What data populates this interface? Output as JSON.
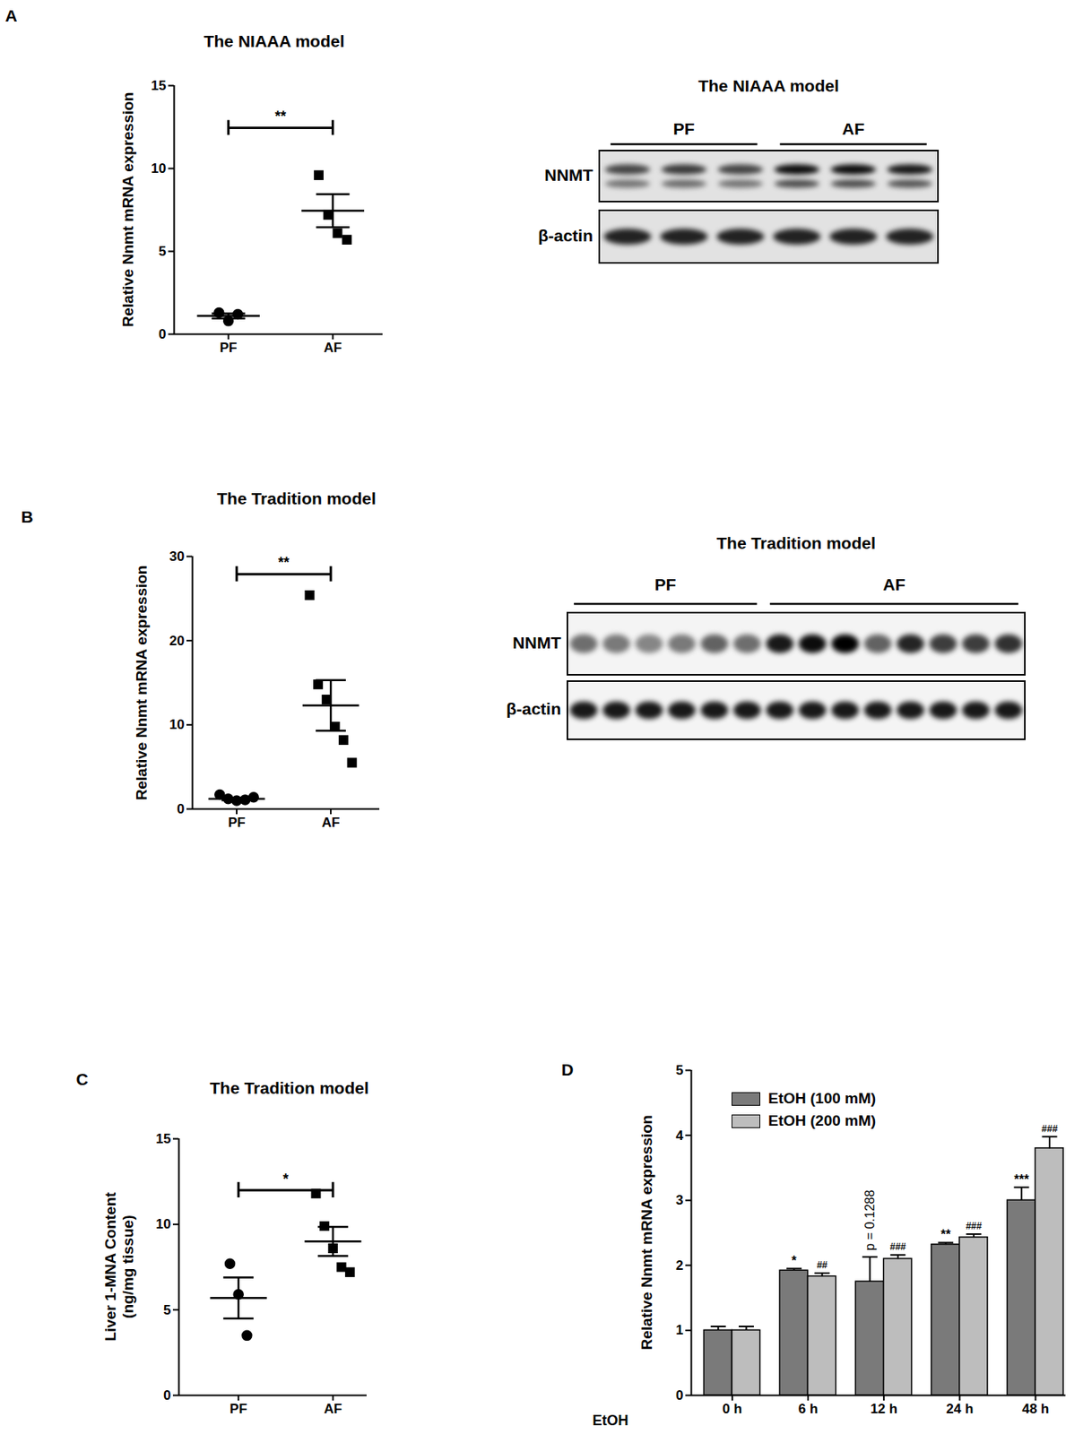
{
  "chart_data": [
    {
      "panel": "A",
      "type": "scatter",
      "title": "The NIAAA model",
      "y_label": "Relative Nnmt mRNA expression",
      "categories": [
        "PF",
        "AF"
      ],
      "points": [
        [
          1.3,
          0.8,
          1.2
        ],
        [
          9.6,
          7.2,
          6.1,
          5.7
        ]
      ],
      "mean": [
        1.1,
        7.45
      ],
      "sem": [
        0.15,
        1.0
      ],
      "marker": [
        "circle",
        "square"
      ],
      "color": "#000000",
      "ylim": [
        0,
        15
      ],
      "yticks": [
        0,
        5,
        10,
        15
      ],
      "significance": "**"
    },
    {
      "panel": "B",
      "type": "scatter",
      "title": "The Tradition model",
      "y_label": "Relative Nnmt mRNA expression",
      "categories": [
        "PF",
        "AF"
      ],
      "points": [
        [
          1.7,
          1.2,
          1.0,
          1.1,
          1.4
        ],
        [
          25.4,
          14.8,
          13.0,
          9.8,
          8.2,
          5.5
        ]
      ],
      "mean": [
        1.2,
        12.3
      ],
      "sem": [
        0.15,
        3.0
      ],
      "marker": [
        "circle",
        "square"
      ],
      "color": "#000000",
      "ylim": [
        0,
        30
      ],
      "yticks": [
        0,
        10,
        20,
        30
      ],
      "significance": "**"
    },
    {
      "panel": "C",
      "type": "scatter",
      "title": "The Tradition model",
      "y_label": [
        "Liver 1-MNA Content",
        "(ng/mg tissue)"
      ],
      "categories": [
        "PF",
        "AF"
      ],
      "points": [
        [
          7.7,
          5.9,
          3.5
        ],
        [
          11.8,
          9.9,
          8.6,
          7.5,
          7.2
        ]
      ],
      "mean": [
        5.7,
        9.0
      ],
      "sem": [
        1.2,
        0.85
      ],
      "marker": [
        "circle",
        "square"
      ],
      "color": "#000000",
      "ylim": [
        0,
        15
      ],
      "yticks": [
        0,
        5,
        10,
        15
      ],
      "significance": "*"
    },
    {
      "panel": "D",
      "type": "bar",
      "y_label": "Relative Nnmt mRNA expression",
      "x_label": "EtOH",
      "categories": [
        "0 h",
        "6 h",
        "12 h",
        "24 h",
        "48 h"
      ],
      "series": [
        {
          "name": "EtOH (100 mM)",
          "color": "#7a7a7a",
          "values": [
            1.0,
            1.92,
            1.75,
            2.32,
            3.0
          ],
          "errors": [
            0.06,
            0.03,
            0.38,
            0.03,
            0.2
          ],
          "annotations": [
            null,
            "*",
            "p = 0.1288",
            "**",
            "***"
          ]
        },
        {
          "name": "EtOH (200 mM)",
          "color": "#bdbdbd",
          "values": [
            1.0,
            1.83,
            2.1,
            2.43,
            3.8
          ],
          "errors": [
            0.06,
            0.05,
            0.06,
            0.05,
            0.18
          ],
          "annotations": [
            null,
            "##",
            "###",
            "###",
            "###"
          ]
        }
      ],
      "ylim": [
        0,
        5
      ],
      "yticks": [
        0,
        1,
        2,
        3,
        4,
        5
      ],
      "legend": "top-left"
    }
  ],
  "blots": [
    {
      "title": "The NIAAA model",
      "groups": [
        {
          "label": "PF",
          "lanes": 3
        },
        {
          "label": "AF",
          "lanes": 3
        }
      ],
      "rows": [
        {
          "label": "NNMT",
          "intensity": [
            0.7,
            0.75,
            0.7,
            0.95,
            0.95,
            0.9
          ]
        },
        {
          "label": "β-actin",
          "intensity": [
            0.85,
            0.85,
            0.85,
            0.85,
            0.85,
            0.85
          ]
        }
      ]
    },
    {
      "title": "The Tradition model",
      "groups": [
        {
          "label": "PF",
          "lanes": 6
        },
        {
          "label": "AF",
          "lanes": 8
        }
      ],
      "rows": [
        {
          "label": "NNMT",
          "intensity": [
            0.55,
            0.5,
            0.45,
            0.5,
            0.6,
            0.55,
            0.9,
            0.95,
            1.0,
            0.6,
            0.85,
            0.75,
            0.75,
            0.8
          ]
        },
        {
          "label": "β-actin",
          "intensity": [
            0.9,
            0.9,
            0.9,
            0.9,
            0.9,
            0.9,
            0.9,
            0.9,
            0.9,
            0.9,
            0.9,
            0.9,
            0.9,
            0.9
          ]
        }
      ]
    }
  ]
}
